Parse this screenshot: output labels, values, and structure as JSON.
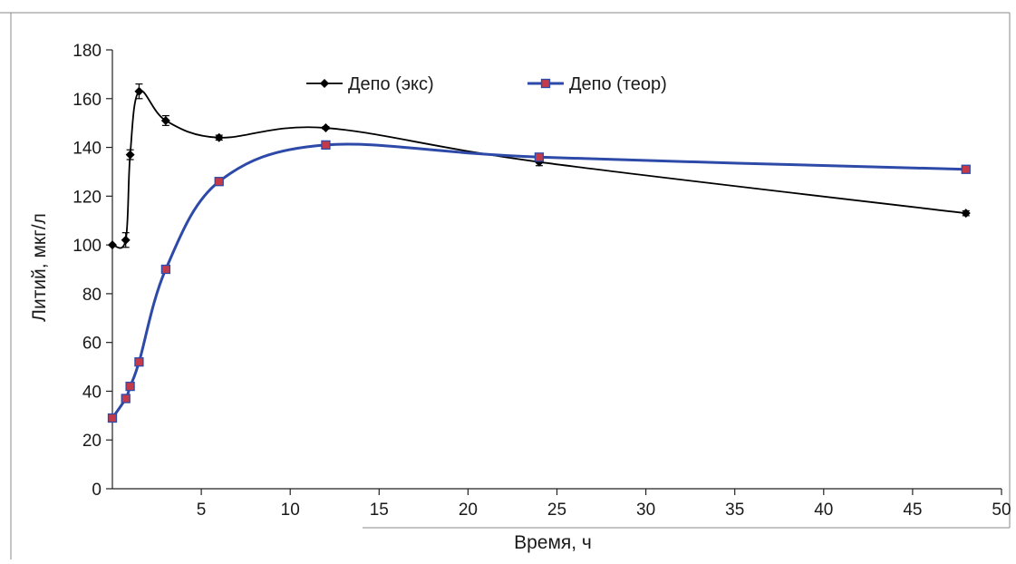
{
  "chart_data": {
    "type": "line",
    "xlabel": "Время, ч",
    "ylabel": "Литий, мкг/л",
    "xlim": [
      0,
      50
    ],
    "ylim": [
      0,
      180
    ],
    "xticks": [
      5,
      10,
      15,
      20,
      25,
      30,
      35,
      40,
      45,
      50
    ],
    "yticks": [
      0,
      20,
      40,
      60,
      80,
      100,
      120,
      140,
      160,
      180
    ],
    "grid": false,
    "legend": "top-center",
    "series": [
      {
        "name": "Депо (экс)",
        "marker": "diamond",
        "color": "#000000",
        "x": [
          0,
          0.75,
          1,
          1.5,
          3,
          6,
          12,
          24,
          48
        ],
        "y": [
          100,
          102,
          137,
          163,
          151,
          144,
          148,
          134,
          113
        ],
        "error": [
          0,
          3,
          2,
          3,
          2,
          1,
          0.5,
          1.5,
          1
        ]
      },
      {
        "name": "Депо (теор)",
        "marker": "square",
        "color": "#2e4aa8",
        "marker_fill": "#c33b4a",
        "x": [
          0,
          0.75,
          1,
          1.5,
          3,
          6,
          12,
          24,
          48
        ],
        "y": [
          29,
          37,
          42,
          52,
          90,
          126,
          141,
          136,
          131
        ],
        "error": []
      }
    ]
  }
}
